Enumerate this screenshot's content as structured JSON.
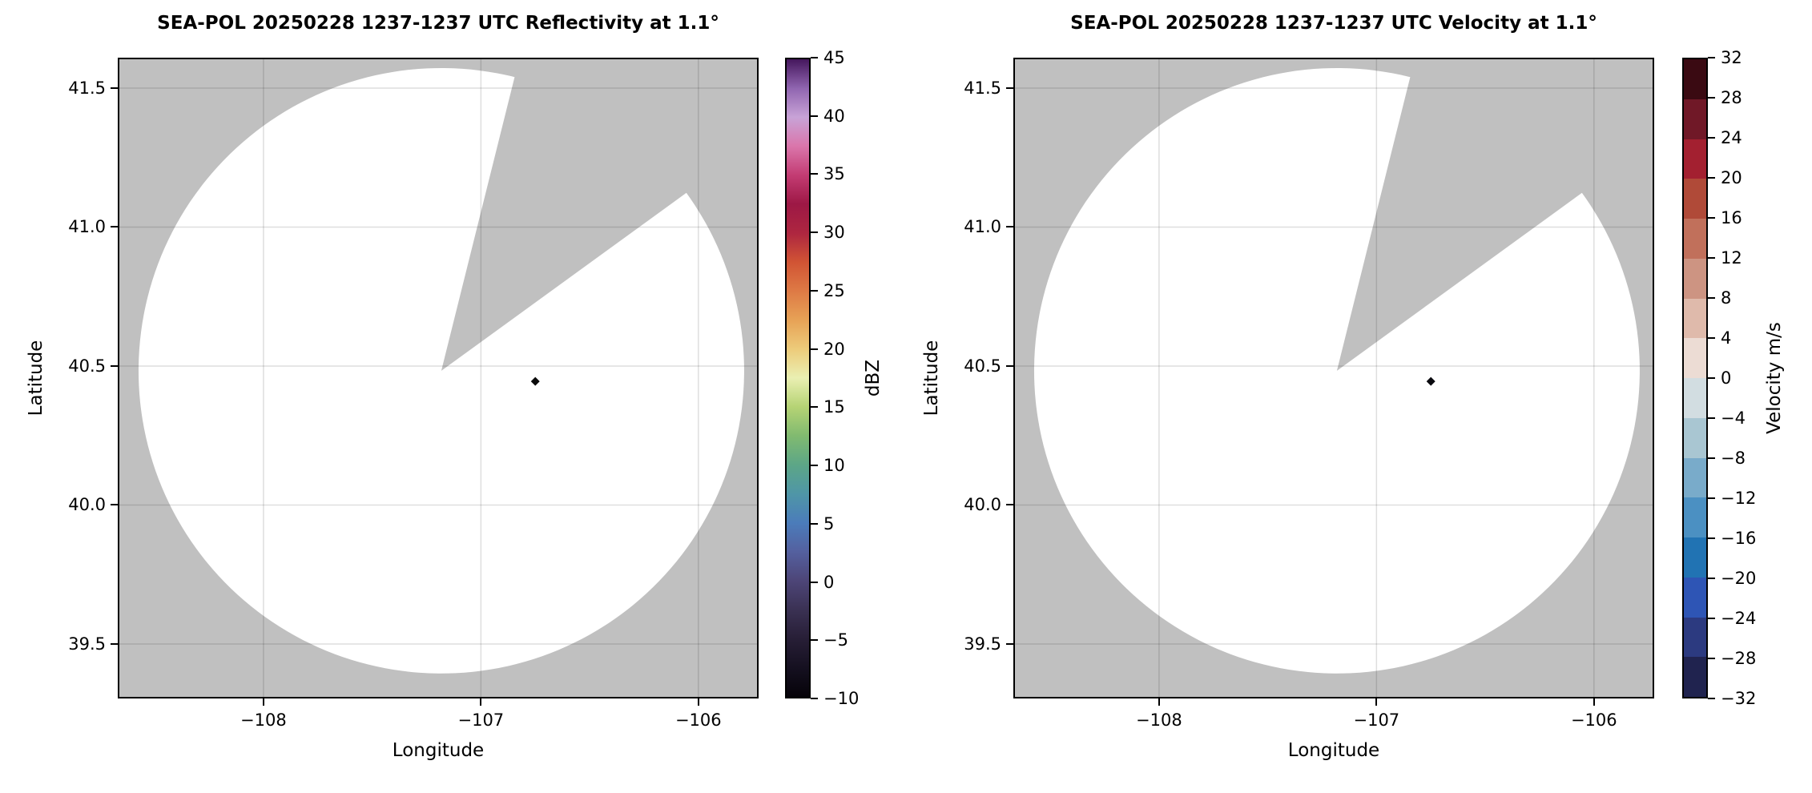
{
  "figure": {
    "background": "#ffffff",
    "panel_background": "#c0c0c0",
    "scan_area_color": "#ffffff",
    "grid_color": "rgba(0,0,0,0.13)",
    "text_color": "#000000"
  },
  "chart_data": [
    {
      "type": "radar_ppi",
      "title": "SEA-POL 20250228 1237-1237 UTC Reflectivity at 1.1°",
      "xlabel": "Longitude",
      "ylabel": "Latitude",
      "xlim": [
        -108.67,
        -105.723
      ],
      "ylim": [
        39.304,
        41.6095
      ],
      "x_ticks": [
        {
          "v": -108,
          "label": "−108"
        },
        {
          "v": -107,
          "label": "−107"
        },
        {
          "v": -106,
          "label": "−106"
        }
      ],
      "y_ticks": [
        {
          "v": 41.5,
          "label": "41.5"
        },
        {
          "v": 41.0,
          "label": "41.0"
        },
        {
          "v": 40.5,
          "label": "40.5"
        },
        {
          "v": 40.0,
          "label": "40.0"
        },
        {
          "v": 39.5,
          "label": "39.5"
        }
      ],
      "grid": true,
      "background_color": "#c0c0c0",
      "scan_area_color": "#ffffff",
      "radar_center": {
        "lon": -107.182,
        "lat": 40.483
      },
      "scan_radius_deg": {
        "lon": 1.3925,
        "lat": 1.089
      },
      "missing_sector_azimuth_deg": [
        14.0,
        54.0
      ],
      "points": [
        {
          "lon": -106.75,
          "lat": 40.445,
          "value_dbz": -10,
          "color": "#0a0a0a",
          "marker": "diamond"
        }
      ],
      "colorbar": {
        "label": "dBZ",
        "vmin": -10,
        "vmax": 45,
        "style": "gradient",
        "ticks": [
          {
            "v": 45,
            "label": "45"
          },
          {
            "v": 40,
            "label": "40"
          },
          {
            "v": 35,
            "label": "35"
          },
          {
            "v": 30,
            "label": "30"
          },
          {
            "v": 25,
            "label": "25"
          },
          {
            "v": 20,
            "label": "20"
          },
          {
            "v": 15,
            "label": "15"
          },
          {
            "v": 10,
            "label": "10"
          },
          {
            "v": 5,
            "label": "5"
          },
          {
            "v": 0,
            "label": "0"
          },
          {
            "v": -5,
            "label": "−5"
          },
          {
            "v": -10,
            "label": "−10"
          }
        ],
        "stops": [
          {
            "value": -10,
            "color": "#060309"
          },
          {
            "value": -7.5,
            "color": "#151020"
          },
          {
            "value": -5,
            "color": "#271e36"
          },
          {
            "value": -2.5,
            "color": "#3a3153"
          },
          {
            "value": 0,
            "color": "#4d4577"
          },
          {
            "value": 2.5,
            "color": "#54609f"
          },
          {
            "value": 5,
            "color": "#4b7cba"
          },
          {
            "value": 7.5,
            "color": "#4f96a7"
          },
          {
            "value": 10,
            "color": "#5ca687"
          },
          {
            "value": 12.5,
            "color": "#80ba70"
          },
          {
            "value": 15,
            "color": "#b5d374"
          },
          {
            "value": 17.5,
            "color": "#eaefb2"
          },
          {
            "value": 20,
            "color": "#edcb7a"
          },
          {
            "value": 22.5,
            "color": "#e7a256"
          },
          {
            "value": 25,
            "color": "#de7a45"
          },
          {
            "value": 27.5,
            "color": "#d15434"
          },
          {
            "value": 30,
            "color": "#ae2640"
          },
          {
            "value": 32.5,
            "color": "#9d1845"
          },
          {
            "value": 35,
            "color": "#c33c73"
          },
          {
            "value": 37.5,
            "color": "#da76ab"
          },
          {
            "value": 40,
            "color": "#c8a3d7"
          },
          {
            "value": 42.5,
            "color": "#9065b0"
          },
          {
            "value": 45,
            "color": "#45175d"
          }
        ]
      }
    },
    {
      "type": "radar_ppi",
      "title": "SEA-POL 20250228 1237-1237 UTC Velocity at 1.1°",
      "xlabel": "Longitude",
      "ylabel": "Latitude",
      "xlim": [
        -108.67,
        -105.723
      ],
      "ylim": [
        39.304,
        41.6095
      ],
      "x_ticks": [
        {
          "v": -108,
          "label": "−108"
        },
        {
          "v": -107,
          "label": "−107"
        },
        {
          "v": -106,
          "label": "−106"
        }
      ],
      "y_ticks": [
        {
          "v": 41.5,
          "label": "41.5"
        },
        {
          "v": 41.0,
          "label": "41.0"
        },
        {
          "v": 40.5,
          "label": "40.5"
        },
        {
          "v": 40.0,
          "label": "40.0"
        },
        {
          "v": 39.5,
          "label": "39.5"
        }
      ],
      "grid": true,
      "background_color": "#c0c0c0",
      "scan_area_color": "#ffffff",
      "radar_center": {
        "lon": -107.182,
        "lat": 40.483
      },
      "scan_radius_deg": {
        "lon": 1.3925,
        "lat": 1.089
      },
      "missing_sector_azimuth_deg": [
        14.0,
        54.0
      ],
      "points": [
        {
          "lon": -106.75,
          "lat": 40.445,
          "value_ms": -32,
          "color": "#0a0a0f",
          "marker": "diamond"
        }
      ],
      "colorbar": {
        "label": "Velocity m/s",
        "vmin": -32,
        "vmax": 32,
        "style": "segments",
        "ticks": [
          {
            "v": 32,
            "label": "32"
          },
          {
            "v": 28,
            "label": "28"
          },
          {
            "v": 24,
            "label": "24"
          },
          {
            "v": 20,
            "label": "20"
          },
          {
            "v": 16,
            "label": "16"
          },
          {
            "v": 12,
            "label": "12"
          },
          {
            "v": 8,
            "label": "8"
          },
          {
            "v": 4,
            "label": "4"
          },
          {
            "v": 0,
            "label": "0"
          },
          {
            "v": -4,
            "label": "−4"
          },
          {
            "v": -8,
            "label": "−8"
          },
          {
            "v": -12,
            "label": "−12"
          },
          {
            "v": -16,
            "label": "−16"
          },
          {
            "v": -20,
            "label": "−20"
          },
          {
            "v": -24,
            "label": "−24"
          },
          {
            "v": -28,
            "label": "−28"
          },
          {
            "v": -32,
            "label": "−32"
          }
        ],
        "segments": [
          {
            "from": -32,
            "to": -28,
            "color": "#20234f"
          },
          {
            "from": -28,
            "to": -24,
            "color": "#2c3a80"
          },
          {
            "from": -24,
            "to": -20,
            "color": "#2e55b5"
          },
          {
            "from": -20,
            "to": -16,
            "color": "#2173b3"
          },
          {
            "from": -16,
            "to": -12,
            "color": "#4b90c2"
          },
          {
            "from": -12,
            "to": -8,
            "color": "#79abca"
          },
          {
            "from": -8,
            "to": -4,
            "color": "#a9c6d2"
          },
          {
            "from": -4,
            "to": 0,
            "color": "#d2dde1"
          },
          {
            "from": 0,
            "to": 4,
            "color": "#ecdcd4"
          },
          {
            "from": 4,
            "to": 8,
            "color": "#dfbaab"
          },
          {
            "from": 8,
            "to": 12,
            "color": "#cd9482"
          },
          {
            "from": 12,
            "to": 16,
            "color": "#c1705b"
          },
          {
            "from": 16,
            "to": 20,
            "color": "#b04a38"
          },
          {
            "from": 20,
            "to": 24,
            "color": "#a32030"
          },
          {
            "from": 24,
            "to": 28,
            "color": "#701827"
          },
          {
            "from": 28,
            "to": 32,
            "color": "#3a0a12"
          }
        ]
      }
    }
  ]
}
